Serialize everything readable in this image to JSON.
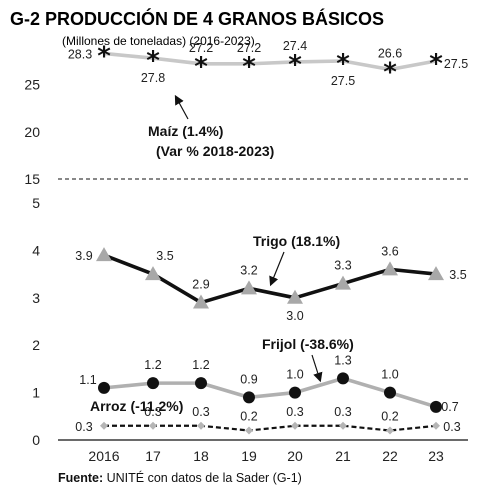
{
  "chart_data": {
    "type": "line",
    "title": "G-2  PRODUCCIÓN DE 4 GRANOS BÁSICOS",
    "subtitle": "(Millones de toneladas) (2016-2023)",
    "source_label": "Fuente:",
    "source_text": " UNITÉ con datos de la Sader (G-1)",
    "categories": [
      "2016",
      "17",
      "18",
      "19",
      "20",
      "21",
      "22",
      "23"
    ],
    "y_axis_break": true,
    "ylim_lower": [
      0,
      5
    ],
    "ylim_upper": [
      15,
      28.3
    ],
    "yticks_lower": [
      "0",
      "1",
      "2",
      "3",
      "4",
      "5"
    ],
    "yticks_upper": [
      "15",
      "20",
      "25"
    ],
    "series": [
      {
        "name": "Maíz (1.4%)",
        "name_line2": "(Var % 2018-2023)",
        "values": [
          28.3,
          27.8,
          27.2,
          27.2,
          27.4,
          27.5,
          26.6,
          27.5
        ],
        "labels": [
          "28.3",
          "27.8",
          "27.2",
          "27.2",
          "27.4",
          "27.5",
          "26.6",
          "27.5"
        ],
        "color": "#c8c8c8",
        "marker": "star",
        "marker_color": "#111111"
      },
      {
        "name": "Trigo (18.1%)",
        "values": [
          3.9,
          3.5,
          2.9,
          3.2,
          3.0,
          3.3,
          3.6,
          3.5
        ],
        "labels": [
          "3.9",
          "3.5",
          "2.9",
          "3.2",
          "3.0",
          "3.3",
          "3.6",
          "3.5"
        ],
        "color": "#111111",
        "marker": "triangle",
        "marker_color": "#a8a8a8"
      },
      {
        "name": "Frijol (-38.6%)",
        "values": [
          1.1,
          1.2,
          1.2,
          0.9,
          1.0,
          1.3,
          1.0,
          0.7
        ],
        "labels": [
          "1.1",
          "1.2",
          "1.2",
          "0.9",
          "1.0",
          "1.3",
          "1.0",
          "0.7"
        ],
        "color": "#b0b0b0",
        "marker": "circle",
        "marker_color": "#111111"
      },
      {
        "name": "Arroz (-11.2%)",
        "values": [
          0.3,
          0.3,
          0.3,
          0.2,
          0.3,
          0.3,
          0.2,
          0.3
        ],
        "labels": [
          "0.3",
          "0.3",
          "0.3",
          "0.2",
          "0.3",
          "0.3",
          "0.2",
          "0.3"
        ],
        "color": "#111111",
        "line_style": "dashed",
        "marker": "diamond",
        "marker_color": "#b5b5b5"
      }
    ]
  }
}
